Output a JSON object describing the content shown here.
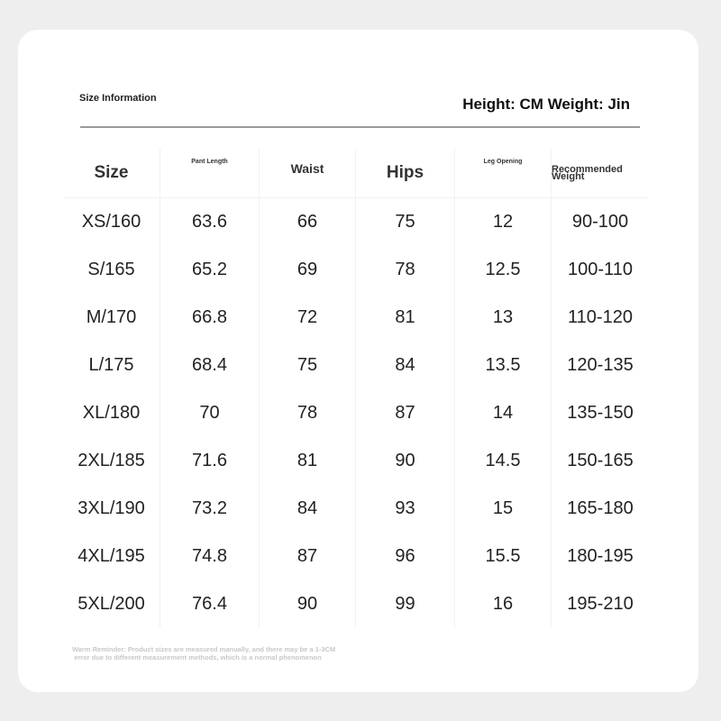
{
  "header": {
    "title": "Size Information",
    "units": "Height: CM Weight: Jin"
  },
  "table": {
    "columns": [
      "Size",
      "Pant Length",
      "Waist",
      "Hips",
      "Leg Opening",
      "Recommended Weight"
    ],
    "rows": [
      [
        "XS/160",
        "63.6",
        "66",
        "75",
        "12",
        "90-100"
      ],
      [
        "S/165",
        "65.2",
        "69",
        "78",
        "12.5",
        "100-110"
      ],
      [
        "M/170",
        "66.8",
        "72",
        "81",
        "13",
        "110-120"
      ],
      [
        "L/175",
        "68.4",
        "75",
        "84",
        "13.5",
        "120-135"
      ],
      [
        "XL/180",
        "70",
        "78",
        "87",
        "14",
        "135-150"
      ],
      [
        "2XL/185",
        "71.6",
        "81",
        "90",
        "14.5",
        "150-165"
      ],
      [
        "3XL/190",
        "73.2",
        "84",
        "93",
        "15",
        "165-180"
      ],
      [
        "4XL/195",
        "74.8",
        "87",
        "96",
        "15.5",
        "180-195"
      ],
      [
        "5XL/200",
        "76.4",
        "90",
        "99",
        "16",
        "195-210"
      ]
    ]
  },
  "note": "Warm Reminder: Product sizes are measured manually, and there may be a 1-3CM\n error due to different measurement methods, which is a normal phenomenon"
}
